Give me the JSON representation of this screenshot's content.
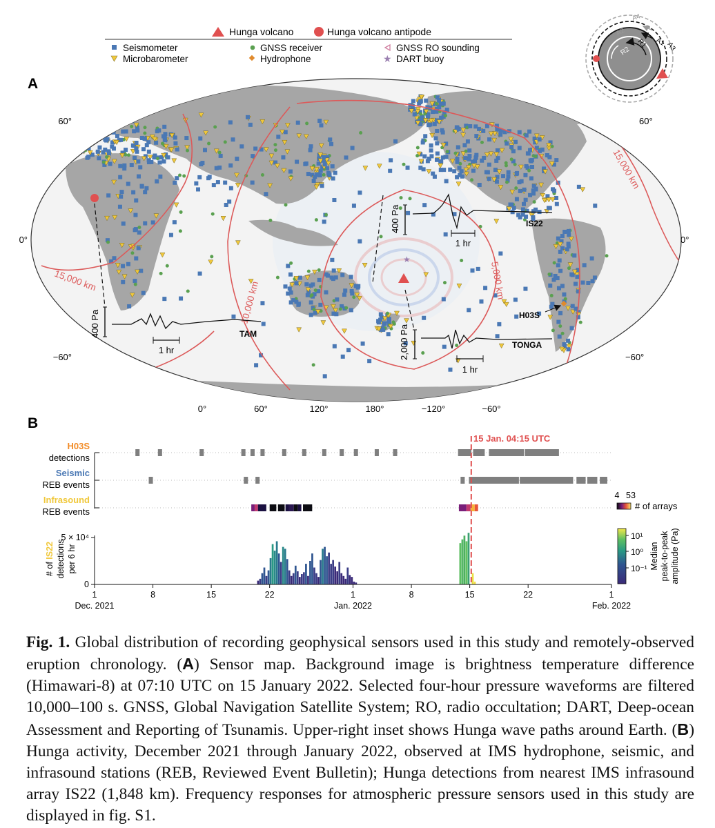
{
  "legend": {
    "volcano": "Hunga volcano",
    "antipode": "Hunga volcano antipode",
    "seismometer": "Seismometer",
    "microbarometer": "Microbarometer",
    "gnss": "GNSS receiver",
    "hydrophone": "Hydrophone",
    "gnss_ro": "GNSS RO sounding",
    "dart": "DART buoy"
  },
  "colors": {
    "seismometer": "#4a78b4",
    "microbarometer": "#f0c83c",
    "gnss": "#5aa050",
    "hydrophone": "#e08a2c",
    "gnss_ro": "#d07fa0",
    "dart": "#9a7fb0",
    "volcano": "#e05050",
    "contour": "#dc5a5a",
    "land": "#a6a6a6",
    "event": "#7f7f7f",
    "h03s_label": "#f28c28",
    "seismic_label": "#4a78b4",
    "infrasound_label": "#f0c83c",
    "ocean": "#f3f3f3"
  },
  "panel_a": {
    "label": "A",
    "lat_left": [
      "60°",
      "0°",
      "−60°"
    ],
    "lat_right": [
      "60°",
      "0°",
      "−60°"
    ],
    "lon_bottom": [
      "0°",
      "60°",
      "120°",
      "180°",
      "−120°",
      "−60°"
    ],
    "contours": [
      "5,000 km",
      "10,000 km",
      "15,000 km",
      "15,000 km"
    ],
    "waveforms": {
      "is22": {
        "station": "IS22",
        "scale": "400 Pa",
        "time": "1 hr"
      },
      "tam": {
        "station": "TAM",
        "scale": "400 Pa",
        "time": "1 hr"
      },
      "tonga": {
        "station": "TONGA",
        "scale": "2,000 Pa",
        "time": "1 hr"
      },
      "h03s": {
        "station": "H03S"
      }
    },
    "inset": {
      "labels": [
        "A4",
        "A2",
        "A1",
        "A3",
        "R2",
        "R1"
      ]
    }
  },
  "panel_b": {
    "label": "B",
    "event_line_label": "15 Jan. 04:15 UTC",
    "rows": [
      {
        "title": "H03S",
        "subtitle": "detections"
      },
      {
        "title": "Seismic",
        "subtitle": "REB events"
      },
      {
        "title": "Infrasound",
        "subtitle": "REB events"
      }
    ],
    "arrays_scale": {
      "min": "4",
      "max": "53",
      "label": "# of arrays"
    },
    "hist_ylabel": {
      "line1_prefix": "# of ",
      "line1_station": "IS22",
      "line2": "detections",
      "line3": "per 6 hr"
    },
    "amp_scale": {
      "ticks": [
        "10¹",
        "10⁰",
        "10⁻¹"
      ],
      "label_line1": "Median",
      "label_line2": "peak-to-peak",
      "label_line3": "amplitude (Pa)"
    }
  },
  "chart_data": {
    "type": "bar",
    "title": "IS22 detections per 6 hr",
    "xlabel": "",
    "ylabel": "# of IS22 detections per 6 hr",
    "x_tick_labels": [
      "1",
      "8",
      "15",
      "22",
      "1",
      "8",
      "15",
      "22",
      "1"
    ],
    "x_month_labels": [
      "Dec. 2021",
      "Jan. 2022",
      "Feb. 2022"
    ],
    "y_tick_labels": [
      "0",
      "5 × 10⁴"
    ],
    "ylim": [
      0,
      55000
    ],
    "xlim_days": [
      0,
      62
    ],
    "event_day": 45.18,
    "days": [
      19.5,
      19.75,
      20,
      20.25,
      20.5,
      20.75,
      21,
      21.25,
      21.5,
      21.75,
      22,
      22.25,
      22.5,
      22.75,
      23,
      23.25,
      23.5,
      23.75,
      24,
      24.25,
      24.5,
      24.75,
      25,
      25.25,
      25.5,
      25.75,
      26,
      26.25,
      26.5,
      26.75,
      27,
      27.25,
      27.5,
      27.75,
      28,
      28.25,
      28.5,
      28.75,
      29,
      29.25,
      29.5,
      29.75,
      30,
      30.25,
      30.5,
      30.75,
      31,
      31.25,
      43.75,
      44,
      44.25,
      44.5,
      44.75,
      45.25,
      45.5
    ],
    "values": [
      4000,
      6000,
      12000,
      18000,
      9000,
      15000,
      28000,
      43000,
      36000,
      46000,
      33000,
      24000,
      40000,
      38000,
      27000,
      15000,
      9000,
      12000,
      20000,
      14000,
      8000,
      11000,
      13000,
      22000,
      9000,
      25000,
      33000,
      18000,
      12000,
      8000,
      26000,
      38000,
      40000,
      30000,
      34000,
      22000,
      26000,
      19000,
      14000,
      24000,
      12000,
      9000,
      6000,
      18000,
      10000,
      8000,
      3000,
      2000,
      44000,
      48000,
      52000,
      46000,
      55000,
      12000,
      3000
    ],
    "amplitude_colors": [
      "#3a2a78",
      "#3b3d86",
      "#2f5590",
      "#2f5590",
      "#3b3d86",
      "#2f5590",
      "#287a8c",
      "#2a9a84",
      "#2a8a88",
      "#287a8c",
      "#2f5590",
      "#3b3d86",
      "#2a8a88",
      "#287a8c",
      "#2f5590",
      "#3b3d86",
      "#3a2a78",
      "#3b3d86",
      "#2f5590",
      "#3b3d86",
      "#3a2a78",
      "#3b3d86",
      "#3b3d86",
      "#2f5590",
      "#3a2a78",
      "#2f5590",
      "#2f5590",
      "#3b3d86",
      "#3b3d86",
      "#3a2a78",
      "#2f5590",
      "#287a8c",
      "#2f5590",
      "#2f5590",
      "#3b3d86",
      "#3b3d86",
      "#3b3d86",
      "#3a2a78",
      "#3a2a78",
      "#3b3d86",
      "#3a2a78",
      "#3a2a78",
      "#3a2a78",
      "#3b3d86",
      "#3a2a78",
      "#3a2a78",
      "#3a2a78",
      "#3a2a78",
      "#5dbf62",
      "#56b866",
      "#4caf5f",
      "#62c35d",
      "#3aa071",
      "#e9e042",
      "#f4e04a"
    ]
  },
  "events": {
    "h03s": [
      [
        4.9,
        5.4
      ],
      [
        7.6,
        8.1
      ],
      [
        12.6,
        13.1
      ],
      [
        17.6,
        18.1
      ],
      [
        18.7,
        19.2
      ],
      [
        19.9,
        20.4
      ],
      [
        22.5,
        23.0
      ],
      [
        24.9,
        25.4
      ],
      [
        27.3,
        27.8
      ],
      [
        29.4,
        29.9
      ],
      [
        31.1,
        31.6
      ],
      [
        33.6,
        34.1
      ],
      [
        35.8,
        36.3
      ],
      [
        43.6,
        45.2
      ],
      [
        45.4,
        46.8
      ],
      [
        47.3,
        51.5
      ],
      [
        51.6,
        55.7
      ]
    ],
    "seismic": [
      [
        6.5,
        7.0
      ],
      [
        17.9,
        18.4
      ],
      [
        19.3,
        19.8
      ],
      [
        43.9,
        44.4
      ],
      [
        44.9,
        50.9
      ],
      [
        51.0,
        57.4
      ],
      [
        57.8,
        58.9
      ],
      [
        59.1,
        60.3
      ],
      [
        60.6,
        61.5
      ]
    ],
    "infrasound": [
      [
        18.8,
        19.2
      ],
      [
        19.2,
        19.6
      ],
      [
        19.6,
        20.6
      ],
      [
        21.0,
        21.8
      ],
      [
        22.0,
        22.8
      ],
      [
        22.9,
        23.3
      ],
      [
        23.3,
        23.9
      ],
      [
        23.9,
        24.4
      ],
      [
        24.4,
        24.8
      ],
      [
        25.0,
        26.1
      ],
      [
        43.7,
        44.6
      ],
      [
        44.6,
        45.1
      ],
      [
        45.1,
        45.6
      ],
      [
        45.6,
        46.0
      ]
    ],
    "infrasound_colors": [
      "#7a1f7a",
      "#c33a6e",
      "#1a1040",
      "#0c0c12",
      "#0c0c12",
      "#1a1040",
      "#2a1850",
      "#0c0c12",
      "#1a1040",
      "#0c0c12",
      "#7a1f7a",
      "#c33a6e",
      "#f5b33a",
      "#e8563a"
    ]
  },
  "caption": {
    "lead": "Fig. 1.",
    "s1": " Global distribution of recording geophysical sensors used in this study and remotely-observed eruption chronology. (",
    "A": "A",
    "s2": ") Sensor map. Background image is brightness temperature difference (Himawari-8) at 07:10 UTC on 15 January 2022. Selected four-hour pressure waveforms are filtered 10,000–100 s. GNSS, Global Navigation Satellite System; RO, radio occultation; DART, Deep-ocean Assessment and Reporting of Tsunamis. Upper-right inset shows Hunga wave paths around Earth. (",
    "B": "B",
    "s3": ") Hunga activity, December 2021 through January 2022, observed at IMS hydrophone, seismic, and infrasound stations (REB, Reviewed Event Bulletin); Hunga detections from nearest IMS infrasound array IS22 (1,848 km). Frequency responses for atmospheric pressure sensors used in this study are displayed in fig. S1."
  }
}
